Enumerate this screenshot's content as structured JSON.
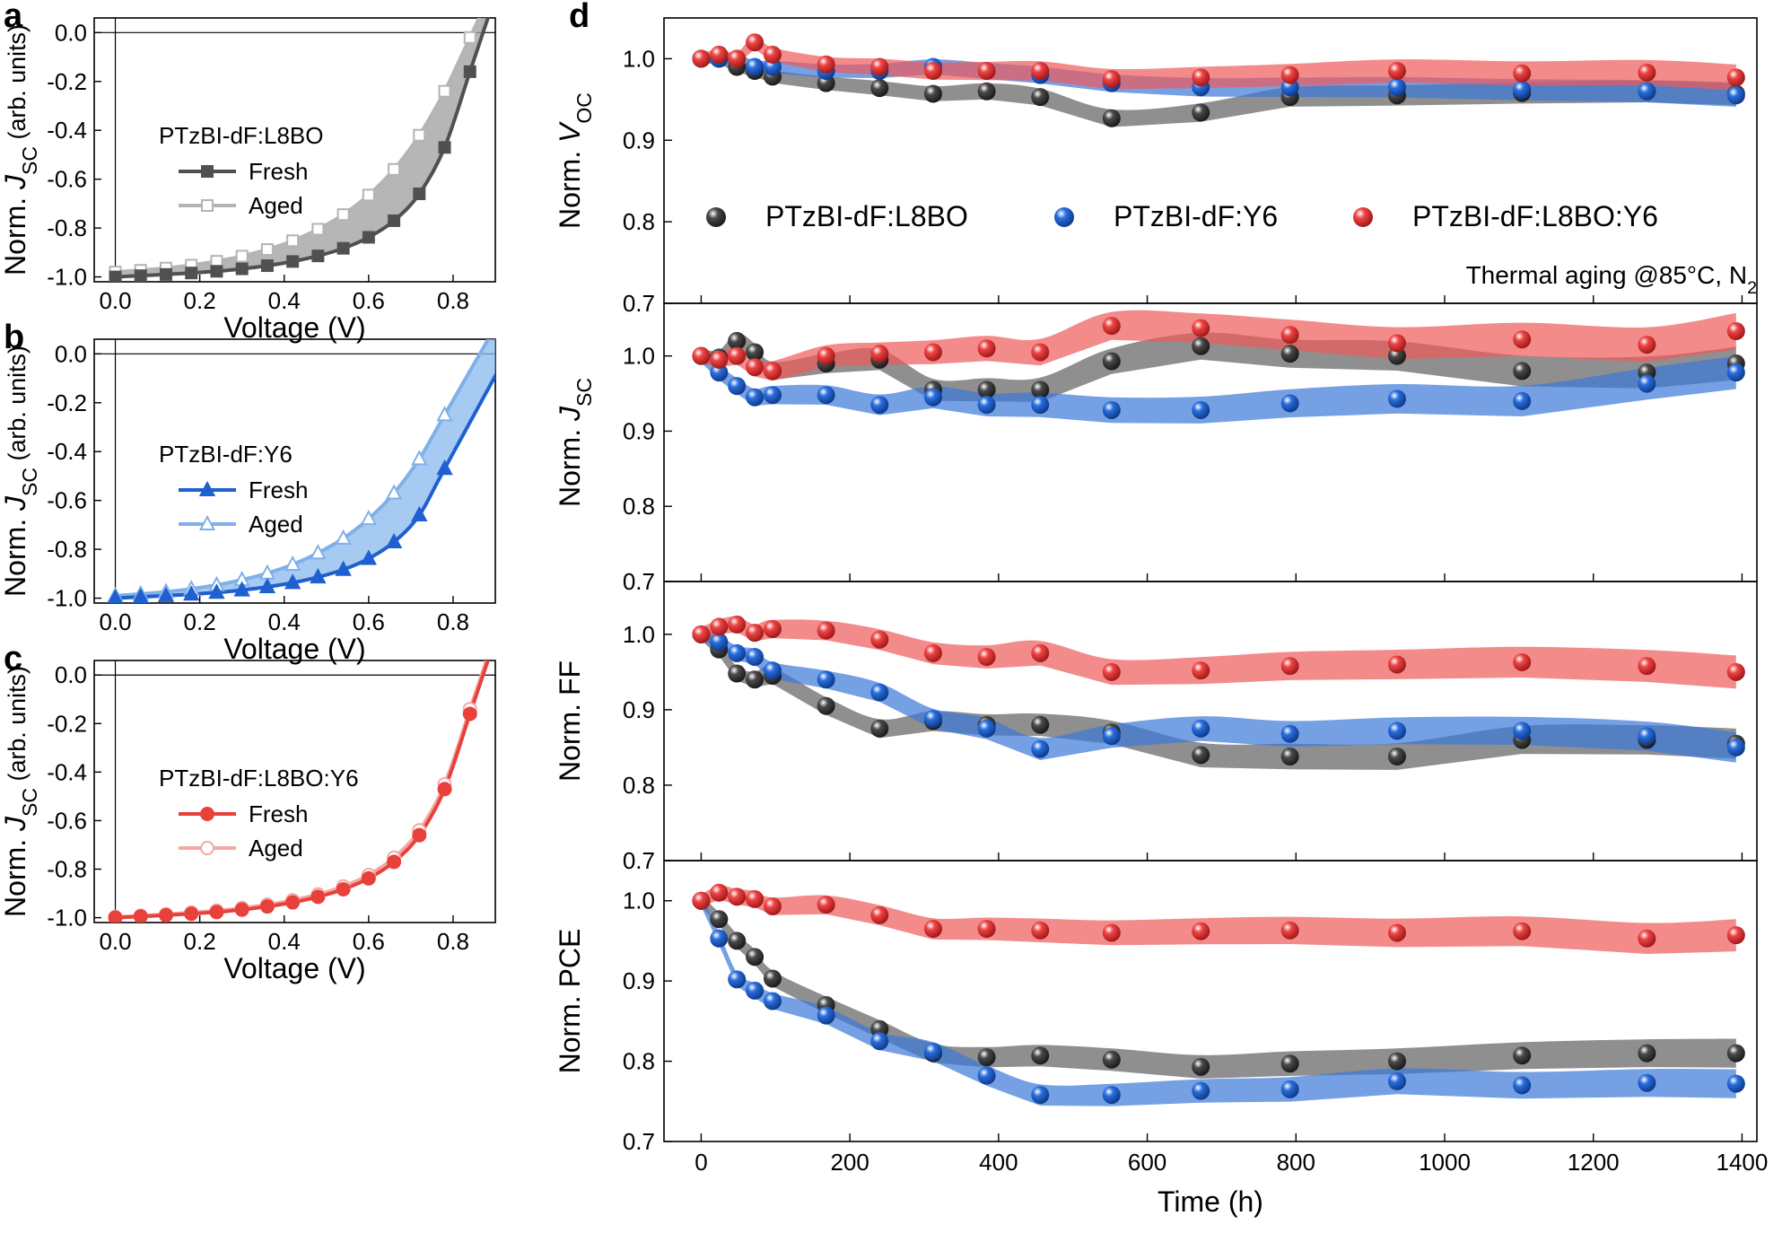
{
  "chart_data": [
    {
      "id": "a",
      "panel_label": "a",
      "type": "line",
      "xlabel": "Voltage (V)",
      "ylabel_main": "Norm. ",
      "ylabel_italic": "J",
      "ylabel_sub": "SC",
      "ylabel_tail": " (arb. units)",
      "xlim": [
        -0.05,
        0.9
      ],
      "ylim": [
        -1.02,
        0.06
      ],
      "xticks": [
        0.0,
        0.2,
        0.4,
        0.6,
        0.8
      ],
      "xtick_labels": [
        "0.0",
        "0.2",
        "0.4",
        "0.6",
        "0.8"
      ],
      "yticks": [
        0.0,
        -0.2,
        -0.4,
        -0.6,
        -0.8,
        -1.0
      ],
      "ytick_labels": [
        "0.0",
        "-0.2",
        "-0.4",
        "-0.6",
        "-0.8",
        "-1.0"
      ],
      "legend_title": "PTzBI-dF:L8BO",
      "series": [
        {
          "name": "Fresh",
          "color": "#505050",
          "marker": "square",
          "filled": true,
          "x": [
            0.0,
            0.06,
            0.12,
            0.18,
            0.24,
            0.3,
            0.36,
            0.42,
            0.48,
            0.54,
            0.6,
            0.66,
            0.72,
            0.78,
            0.84
          ],
          "y": [
            -1.0,
            -0.995,
            -0.99,
            -0.984,
            -0.977,
            -0.967,
            -0.954,
            -0.937,
            -0.914,
            -0.883,
            -0.838,
            -0.77,
            -0.66,
            -0.47,
            -0.16
          ]
        },
        {
          "name": "Aged",
          "color": "#b4b4b4",
          "marker": "square",
          "filled": false,
          "x": [
            0.0,
            0.06,
            0.12,
            0.18,
            0.24,
            0.3,
            0.36,
            0.42,
            0.48,
            0.54,
            0.6,
            0.66,
            0.72,
            0.78,
            0.84
          ],
          "y": [
            -0.98,
            -0.973,
            -0.964,
            -0.952,
            -0.936,
            -0.915,
            -0.888,
            -0.852,
            -0.805,
            -0.745,
            -0.665,
            -0.56,
            -0.42,
            -0.24,
            -0.02
          ]
        }
      ],
      "fill_color": "#9e9e9e"
    },
    {
      "id": "b",
      "panel_label": "b",
      "type": "line",
      "xlabel": "Voltage (V)",
      "ylabel_main": "Norm. ",
      "ylabel_italic": "J",
      "ylabel_sub": "SC",
      "ylabel_tail": " (arb. units)",
      "xlim": [
        -0.05,
        0.9
      ],
      "ylim": [
        -1.02,
        0.06
      ],
      "xticks": [
        0.0,
        0.2,
        0.4,
        0.6,
        0.8
      ],
      "xtick_labels": [
        "0.0",
        "0.2",
        "0.4",
        "0.6",
        "0.8"
      ],
      "yticks": [
        0.0,
        -0.2,
        -0.4,
        -0.6,
        -0.8,
        -1.0
      ],
      "ytick_labels": [
        "0.0",
        "-0.2",
        "-0.4",
        "-0.6",
        "-0.8",
        "-1.0"
      ],
      "legend_title": "PTzBI-dF:Y6",
      "series": [
        {
          "name": "Fresh",
          "color": "#1f5fcf",
          "marker": "triangle",
          "filled": true,
          "x": [
            0.0,
            0.06,
            0.12,
            0.18,
            0.24,
            0.3,
            0.36,
            0.42,
            0.48,
            0.54,
            0.6,
            0.66,
            0.72,
            0.78
          ],
          "y": [
            -1.0,
            -0.995,
            -0.99,
            -0.984,
            -0.977,
            -0.967,
            -0.954,
            -0.937,
            -0.914,
            -0.883,
            -0.838,
            -0.77,
            -0.66,
            -0.47
          ]
        },
        {
          "name": "Aged",
          "color": "#7fb0ea",
          "marker": "triangle",
          "filled": false,
          "x": [
            0.0,
            0.06,
            0.12,
            0.18,
            0.24,
            0.3,
            0.36,
            0.42,
            0.48,
            0.54,
            0.6,
            0.66,
            0.72,
            0.78
          ],
          "y": [
            -0.99,
            -0.983,
            -0.974,
            -0.962,
            -0.946,
            -0.925,
            -0.898,
            -0.862,
            -0.815,
            -0.755,
            -0.675,
            -0.57,
            -0.43,
            -0.25
          ]
        }
      ],
      "fill_color": "#8ab8ee"
    },
    {
      "id": "c",
      "panel_label": "c",
      "type": "line",
      "xlabel": "Voltage (V)",
      "ylabel_main": "Norm. ",
      "ylabel_italic": "J",
      "ylabel_sub": "SC",
      "ylabel_tail": " (arb. units)",
      "xlim": [
        -0.05,
        0.9
      ],
      "ylim": [
        -1.02,
        0.06
      ],
      "xticks": [
        0.0,
        0.2,
        0.4,
        0.6,
        0.8
      ],
      "xtick_labels": [
        "0.0",
        "0.2",
        "0.4",
        "0.6",
        "0.8"
      ],
      "yticks": [
        0.0,
        -0.2,
        -0.4,
        -0.6,
        -0.8,
        -1.0
      ],
      "ytick_labels": [
        "0.0",
        "-0.2",
        "-0.4",
        "-0.6",
        "-0.8",
        "-1.0"
      ],
      "legend_title": "PTzBI-dF:L8BO:Y6",
      "series": [
        {
          "name": "Fresh",
          "color": "#e8403a",
          "marker": "circle",
          "filled": true,
          "x": [
            0.0,
            0.06,
            0.12,
            0.18,
            0.24,
            0.3,
            0.36,
            0.42,
            0.48,
            0.54,
            0.6,
            0.66,
            0.72,
            0.78,
            0.84
          ],
          "y": [
            -1.0,
            -0.995,
            -0.99,
            -0.984,
            -0.977,
            -0.967,
            -0.954,
            -0.937,
            -0.914,
            -0.883,
            -0.838,
            -0.77,
            -0.66,
            -0.47,
            -0.16
          ]
        },
        {
          "name": "Aged",
          "color": "#f4a8a4",
          "marker": "circle",
          "filled": false,
          "x": [
            0.0,
            0.06,
            0.12,
            0.18,
            0.24,
            0.3,
            0.36,
            0.42,
            0.48,
            0.54,
            0.6,
            0.66,
            0.72,
            0.78,
            0.84
          ],
          "y": [
            -0.997,
            -0.992,
            -0.986,
            -0.979,
            -0.971,
            -0.96,
            -0.946,
            -0.928,
            -0.904,
            -0.871,
            -0.824,
            -0.753,
            -0.64,
            -0.45,
            -0.14
          ]
        }
      ],
      "fill_color": "#f0a0a0"
    },
    {
      "id": "d",
      "panel_label": "d",
      "type": "scatter",
      "xlabel": "Time (h)",
      "xlim": [
        -50,
        1420
      ],
      "xticks": [
        0,
        200,
        400,
        600,
        800,
        1000,
        1200,
        1400
      ],
      "xtick_labels": [
        "0",
        "200",
        "400",
        "600",
        "800",
        "1000",
        "1200",
        "1400"
      ],
      "legend": [
        "PTzBI-dF:L8BO",
        "PTzBI-dF:Y6",
        "PTzBI-dF:L8BO:Y6"
      ],
      "legend_colors": [
        "#4a4a4a",
        "#2a6ede",
        "#ee4444"
      ],
      "band_colors": [
        "#5f5f5f",
        "#3a78d8",
        "#ee5a5a"
      ],
      "annotation_main": "Thermal aging @85°C, N",
      "annotation_sub": "2",
      "time": [
        0,
        24,
        48,
        72,
        96,
        168,
        240,
        312,
        384,
        456,
        552,
        672,
        792,
        936,
        1104,
        1272,
        1392
      ],
      "subplots": [
        {
          "ylabel_main": "Norm. ",
          "ylabel_italic": "V",
          "ylabel_sub": "OC",
          "ylim": [
            0.7,
            1.05
          ],
          "yticks": [
            0.7,
            0.8,
            0.9,
            1.0
          ],
          "ytick_labels": [
            "0.7",
            "0.8",
            "0.9",
            "1.0"
          ],
          "series": [
            {
              "name": "PTzBI-dF:L8BO",
              "values": [
                1.0,
                1.0,
                0.99,
                0.985,
                0.978,
                0.97,
                0.964,
                0.957,
                0.96,
                0.953,
                0.927,
                0.934,
                0.953,
                0.955,
                0.958,
                0.96,
                0.957
              ]
            },
            {
              "name": "PTzBI-dF:Y6",
              "values": [
                1.0,
                1.0,
                1.0,
                0.99,
                0.99,
                0.985,
                0.985,
                0.99,
                0.985,
                0.98,
                0.97,
                0.965,
                0.965,
                0.965,
                0.962,
                0.96,
                0.955
              ]
            },
            {
              "name": "PTzBI-dF:L8BO:Y6",
              "values": [
                1.0,
                1.005,
                1.0,
                1.02,
                1.005,
                0.993,
                0.99,
                0.985,
                0.985,
                0.985,
                0.975,
                0.977,
                0.98,
                0.985,
                0.982,
                0.983,
                0.977
              ]
            }
          ]
        },
        {
          "ylabel_main": "Norm. ",
          "ylabel_italic": "J",
          "ylabel_sub": "SC",
          "ylim": [
            0.7,
            1.07
          ],
          "yticks": [
            0.7,
            0.8,
            0.9,
            1.0
          ],
          "ytick_labels": [
            "0.7",
            "0.8",
            "0.9",
            "1.0"
          ],
          "series": [
            {
              "name": "PTzBI-dF:L8BO",
              "values": [
                1.0,
                0.998,
                1.02,
                1.005,
                0.98,
                0.99,
                0.995,
                0.955,
                0.955,
                0.955,
                0.993,
                1.013,
                1.003,
                1.0,
                0.98,
                0.978,
                0.99
              ]
            },
            {
              "name": "PTzBI-dF:Y6",
              "values": [
                1.0,
                0.978,
                0.96,
                0.945,
                0.948,
                0.948,
                0.935,
                0.945,
                0.935,
                0.935,
                0.928,
                0.928,
                0.937,
                0.943,
                0.94,
                0.963,
                0.978
              ]
            },
            {
              "name": "PTzBI-dF:L8BO:Y6",
              "values": [
                1.0,
                0.995,
                1.0,
                0.985,
                0.98,
                1.0,
                1.003,
                1.005,
                1.01,
                1.005,
                1.04,
                1.037,
                1.028,
                1.017,
                1.022,
                1.015,
                1.033
              ]
            }
          ]
        },
        {
          "ylabel_main": "Norm. FF",
          "ylabel_italic": "",
          "ylabel_sub": "",
          "ylim": [
            0.7,
            1.07
          ],
          "yticks": [
            0.7,
            0.8,
            0.9,
            1.0
          ],
          "ytick_labels": [
            "0.7",
            "0.8",
            "0.9",
            "1.0"
          ],
          "series": [
            {
              "name": "PTzBI-dF:L8BO",
              "values": [
                1.0,
                0.98,
                0.948,
                0.94,
                0.945,
                0.905,
                0.875,
                0.885,
                0.88,
                0.88,
                0.87,
                0.84,
                0.838,
                0.838,
                0.86,
                0.86,
                0.855
              ]
            },
            {
              "name": "PTzBI-dF:Y6",
              "values": [
                1.0,
                0.99,
                0.975,
                0.97,
                0.952,
                0.94,
                0.923,
                0.888,
                0.875,
                0.848,
                0.865,
                0.875,
                0.868,
                0.872,
                0.872,
                0.865,
                0.85
              ]
            },
            {
              "name": "PTzBI-dF:L8BO:Y6",
              "values": [
                1.0,
                1.01,
                1.013,
                1.002,
                1.007,
                1.005,
                0.993,
                0.975,
                0.97,
                0.975,
                0.95,
                0.952,
                0.958,
                0.96,
                0.963,
                0.958,
                0.95
              ]
            }
          ]
        },
        {
          "ylabel_main": "Norm. PCE",
          "ylabel_italic": "",
          "ylabel_sub": "",
          "ylim": [
            0.7,
            1.05
          ],
          "yticks": [
            0.7,
            0.8,
            0.9,
            1.0
          ],
          "ytick_labels": [
            "0.7",
            "0.8",
            "0.9",
            "1.0"
          ],
          "series": [
            {
              "name": "PTzBI-dF:L8BO",
              "values": [
                1.0,
                0.977,
                0.95,
                0.93,
                0.903,
                0.87,
                0.84,
                0.81,
                0.805,
                0.807,
                0.802,
                0.793,
                0.797,
                0.8,
                0.807,
                0.81,
                0.81
              ]
            },
            {
              "name": "PTzBI-dF:Y6",
              "values": [
                1.0,
                0.953,
                0.902,
                0.888,
                0.875,
                0.857,
                0.825,
                0.812,
                0.782,
                0.758,
                0.758,
                0.763,
                0.765,
                0.775,
                0.77,
                0.773,
                0.772
              ]
            },
            {
              "name": "PTzBI-dF:L8BO:Y6",
              "values": [
                1.0,
                1.01,
                1.005,
                1.002,
                0.993,
                0.995,
                0.982,
                0.965,
                0.965,
                0.963,
                0.96,
                0.962,
                0.963,
                0.96,
                0.962,
                0.953,
                0.957
              ]
            }
          ]
        }
      ]
    }
  ]
}
